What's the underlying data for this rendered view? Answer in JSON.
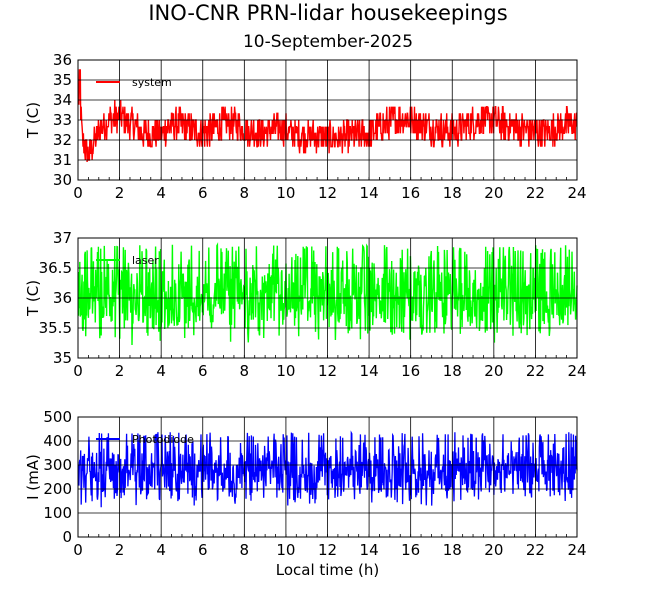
{
  "title": "INO-CNR PRN-lidar housekeepings",
  "subtitle": "10-September-2025",
  "colors": {
    "panel1": "#ff0000",
    "panel2": "#00ff00",
    "panel3": "#0000ff",
    "axes": "#000000"
  },
  "chart_data": [
    {
      "type": "line",
      "title": "",
      "xlabel": "",
      "ylabel": "T (C)",
      "xlim": [
        0,
        24
      ],
      "ylim": [
        30,
        36
      ],
      "x_ticks": [
        "0",
        "2",
        "4",
        "6",
        "8",
        "10",
        "12",
        "14",
        "16",
        "18",
        "20",
        "22",
        "24"
      ],
      "y_ticks": [
        "30",
        "31",
        "32",
        "33",
        "34",
        "35",
        "36"
      ],
      "grid": true,
      "legend": "top-left",
      "series": [
        {
          "name": "system",
          "color": "#ff0000",
          "description": "noisy temperature trace, quantized around 32-33.5 C",
          "x": [
            0,
            0.05,
            0.2,
            0.5,
            1,
            1.5,
            2,
            2.5,
            3,
            3.5,
            4,
            4.5,
            5,
            5.5,
            6,
            6.5,
            7,
            7.5,
            8,
            8.5,
            9,
            9.5,
            10,
            10.5,
            11,
            11.5,
            12,
            12.5,
            13,
            13.5,
            14,
            14.5,
            15,
            15.5,
            16,
            16.5,
            17,
            17.5,
            18,
            18.5,
            19,
            19.5,
            20,
            20.5,
            21,
            21.5,
            22,
            22.5,
            23,
            23.5,
            24
          ],
          "y": [
            33.8,
            35.5,
            32.0,
            31.2,
            32.5,
            33.0,
            33.2,
            32.8,
            32.4,
            32.3,
            32.3,
            32.8,
            32.8,
            32.5,
            32.4,
            32.5,
            32.8,
            32.8,
            32.5,
            32.4,
            32.3,
            32.6,
            32.5,
            32.3,
            32.2,
            32.2,
            32.1,
            32.1,
            32.2,
            32.2,
            32.3,
            32.6,
            32.9,
            33.1,
            33.0,
            32.8,
            32.6,
            32.5,
            32.5,
            32.6,
            32.9,
            33.0,
            33.0,
            32.8,
            32.6,
            32.5,
            32.4,
            32.4,
            32.6,
            32.8,
            32.8
          ],
          "band_low": 31.7,
          "band_high": 33.7
        }
      ]
    },
    {
      "type": "line",
      "title": "",
      "xlabel": "",
      "ylabel": "T (C)",
      "xlim": [
        0,
        24
      ],
      "ylim": [
        35,
        37
      ],
      "x_ticks": [
        "0",
        "2",
        "4",
        "6",
        "8",
        "10",
        "12",
        "14",
        "16",
        "18",
        "20",
        "22",
        "24"
      ],
      "y_ticks": [
        "35",
        "35.5",
        "36",
        "36.5",
        "37"
      ],
      "grid": true,
      "legend": "top-left",
      "series": [
        {
          "name": "laser",
          "color": "#00ff00",
          "description": "noisy temperature oscillating between about 35.2 and 36.8 C",
          "band_low": 35.2,
          "band_high": 36.8,
          "mean": 36.0
        }
      ]
    },
    {
      "type": "line",
      "title": "",
      "xlabel": "Local time (h)",
      "ylabel": "I (mA)",
      "xlim": [
        0,
        24
      ],
      "ylim": [
        0,
        500
      ],
      "x_ticks": [
        "0",
        "2",
        "4",
        "6",
        "8",
        "10",
        "12",
        "14",
        "16",
        "18",
        "20",
        "22",
        "24"
      ],
      "y_ticks": [
        "0",
        "100",
        "200",
        "300",
        "400",
        "500"
      ],
      "grid": true,
      "legend": "top-left",
      "series": [
        {
          "name": "Photodiode",
          "color": "#0000ff",
          "description": "dense noisy current trace between about 120 and 420 mA",
          "band_low": 120,
          "band_high": 420,
          "mean": 270
        }
      ]
    }
  ]
}
